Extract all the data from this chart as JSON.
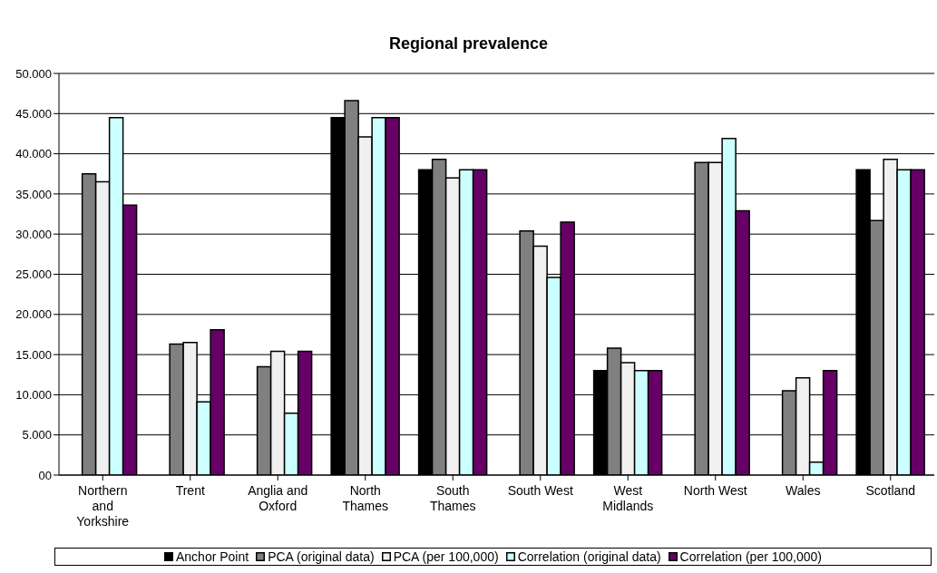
{
  "chart_data": {
    "type": "bar",
    "title": "Regional prevalence",
    "categories": [
      "Northern and Yorkshire",
      "Trent",
      "Anglia and Oxford",
      "North Thames",
      "South Thames",
      "South West",
      "West Midlands",
      "North West",
      "Wales",
      "Scotland"
    ],
    "series": [
      {
        "name": "Anchor Point",
        "color": "#000000",
        "values": [
          null,
          null,
          null,
          44.5,
          38,
          null,
          13,
          null,
          null,
          38
        ]
      },
      {
        "name": "PCA (original data)",
        "color": "#808080",
        "values": [
          37.5,
          16.3,
          13.5,
          46.6,
          39.3,
          30.4,
          15.8,
          38.9,
          10.5,
          31.7
        ]
      },
      {
        "name": "PCA (per 100,000)",
        "color": "#f0f0f0",
        "values": [
          36.5,
          16.5,
          15.4,
          42.1,
          37,
          28.5,
          14,
          38.9,
          12.1,
          39.3
        ]
      },
      {
        "name": "Correlation (original data)",
        "color": "#ccffff",
        "values": [
          44.5,
          9.1,
          7.7,
          44.5,
          38,
          24.6,
          13,
          41.9,
          1.6,
          38
        ]
      },
      {
        "name": "Correlation (per 100,000)",
        "color": "#660066",
        "values": [
          33.6,
          18.1,
          15.4,
          44.5,
          38,
          31.5,
          13,
          32.9,
          13,
          38
        ]
      }
    ],
    "ylim": [
      0,
      50
    ],
    "yticks": [
      {
        "value": 0,
        "label": "00"
      },
      {
        "value": 5,
        "label": "5.000"
      },
      {
        "value": 10,
        "label": "10.000"
      },
      {
        "value": 15,
        "label": "15.000"
      },
      {
        "value": 20,
        "label": "20.000"
      },
      {
        "value": 25,
        "label": "25.000"
      },
      {
        "value": 30,
        "label": "30.000"
      },
      {
        "value": 35,
        "label": "35.000"
      },
      {
        "value": 40,
        "label": "40.000"
      },
      {
        "value": 45,
        "label": "45.000"
      },
      {
        "value": 50,
        "label": "50.000"
      }
    ],
    "grid": "y",
    "legend": "bottom"
  }
}
